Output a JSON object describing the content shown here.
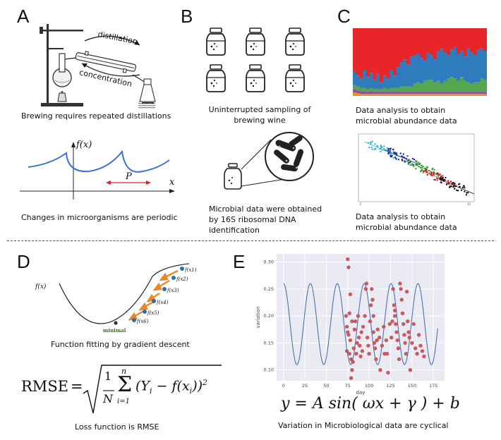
{
  "panels": {
    "a": {
      "label": "A",
      "distillation": "distillation",
      "concentration": "concentration",
      "caption": "Brewing requires repeated distillations",
      "wave_ylabel": "f(x)",
      "wave_xlabel": "x",
      "period_label": "P",
      "wave_caption": "Changes in microorganisms are periodic"
    },
    "b": {
      "label": "B",
      "caption_line1": "Uninterrupted sampling of",
      "caption_line2": "brewing wine",
      "micro_line1": "Microbial  data were obtained",
      "micro_line2": "by 16S ribosomal DNA",
      "micro_line3": "identification"
    },
    "c": {
      "label": "C",
      "caption1_line1": "Data analysis to obtain",
      "caption1_line2": "microbial abundance data",
      "caption2_line1": "Data analysis to obtain",
      "caption2_line2": "microbial abundance data"
    },
    "d": {
      "label": "D",
      "fx_label": "f(x)",
      "minimal_label": "minimal",
      "points": [
        "f(x1)",
        "f(x2)",
        "f(x3)",
        "f(x4)",
        "f(x5)",
        "f(x6)"
      ],
      "caption": "Function fitting by gradient descent",
      "rmse_lhs": "RMSE",
      "rmse_frac_num": "1",
      "rmse_frac_den": "N",
      "rmse_sum_top": "n",
      "rmse_sum_bottom": "i=1",
      "rmse_body": "(Y",
      "rmse_sub_i": "i",
      "rmse_minus": " − f(x",
      "rmse_close": "))",
      "rmse_exp": "2",
      "loss_caption": "Loss function is RMSE"
    },
    "e": {
      "label": "E",
      "formula": "y = A sin( ωx + γ ) + b",
      "caption": "Variation in Microbiological data are cyclical"
    }
  },
  "chart_data": {
    "type": "scatter",
    "xlabel": "day",
    "ylabel": "variation",
    "xlim": [
      -8,
      188
    ],
    "ylim": [
      0.08,
      0.315
    ],
    "xticks": [
      0,
      25,
      50,
      75,
      100,
      125,
      150,
      175
    ],
    "yticks": [
      0.1,
      0.15,
      0.2,
      0.25,
      0.3
    ],
    "grid": true,
    "series": [
      {
        "kind": "line",
        "color": "#4c72b0",
        "model": {
          "A": 0.15,
          "period": 31.4,
          "b": 0.11,
          "x_start": 0,
          "x_end": 180
        }
      },
      {
        "kind": "points",
        "color": "#c44e52",
        "points": [
          [
            73,
            0.2
          ],
          [
            74,
            0.18
          ],
          [
            75,
            0.305
          ],
          [
            76,
            0.29
          ],
          [
            75,
            0.17
          ],
          [
            77,
            0.13
          ],
          [
            74,
            0.135
          ],
          [
            78,
            0.24
          ],
          [
            76,
            0.165
          ],
          [
            79,
            0.12
          ],
          [
            80,
            0.19
          ],
          [
            77,
            0.205
          ],
          [
            78,
            0.155
          ],
          [
            81,
            0.115
          ],
          [
            80,
            0.1
          ],
          [
            79,
            0.085
          ],
          [
            82,
            0.14
          ],
          [
            83,
            0.175
          ],
          [
            84,
            0.19
          ],
          [
            85,
            0.13
          ],
          [
            86,
            0.15
          ],
          [
            87,
            0.2
          ],
          [
            88,
            0.16
          ],
          [
            89,
            0.145
          ],
          [
            90,
            0.125
          ],
          [
            91,
            0.17
          ],
          [
            92,
            0.135
          ],
          [
            93,
            0.18
          ],
          [
            95,
            0.2
          ],
          [
            96,
            0.25
          ],
          [
            97,
            0.26
          ],
          [
            98,
            0.16
          ],
          [
            99,
            0.145
          ],
          [
            100,
            0.13
          ],
          [
            101,
            0.19
          ],
          [
            102,
            0.22
          ],
          [
            103,
            0.25
          ],
          [
            104,
            0.23
          ],
          [
            105,
            0.2
          ],
          [
            105,
            0.17
          ],
          [
            106,
            0.15
          ],
          [
            107,
            0.14
          ],
          [
            108,
            0.12
          ],
          [
            109,
            0.155
          ],
          [
            110,
            0.175
          ],
          [
            112,
            0.16
          ],
          [
            113,
            0.1
          ],
          [
            115,
            0.145
          ],
          [
            117,
            0.18
          ],
          [
            118,
            0.13
          ],
          [
            120,
            0.155
          ],
          [
            121,
            0.13
          ],
          [
            122,
            0.095
          ],
          [
            124,
            0.185
          ],
          [
            126,
            0.16
          ],
          [
            127,
            0.19
          ],
          [
            128,
            0.25
          ],
          [
            129,
            0.22
          ],
          [
            130,
            0.21
          ],
          [
            130,
            0.2
          ],
          [
            131,
            0.185
          ],
          [
            132,
            0.17
          ],
          [
            133,
            0.155
          ],
          [
            134,
            0.14
          ],
          [
            135,
            0.12
          ],
          [
            136,
            0.26
          ],
          [
            137,
            0.25
          ],
          [
            138,
            0.23
          ],
          [
            139,
            0.205
          ],
          [
            140,
            0.185
          ],
          [
            141,
            0.165
          ],
          [
            142,
            0.15
          ],
          [
            143,
            0.13
          ],
          [
            144,
            0.245
          ],
          [
            145,
            0.19
          ],
          [
            146,
            0.17
          ],
          [
            147,
            0.16
          ],
          [
            148,
            0.1
          ],
          [
            150,
            0.15
          ],
          [
            152,
            0.185
          ],
          [
            154,
            0.14
          ],
          [
            156,
            0.13
          ],
          [
            158,
            0.165
          ],
          [
            160,
            0.145
          ],
          [
            162,
            0.135
          ],
          [
            164,
            0.125
          ]
        ]
      }
    ]
  },
  "bars": {
    "colors": [
      "#e8262a",
      "#2e7bbd",
      "#55a74d",
      "#8b4fa0",
      "#f08a24"
    ],
    "columns": [
      [
        0.64,
        0.2,
        0.06,
        0.05,
        0.05
      ],
      [
        0.7,
        0.16,
        0.06,
        0.04,
        0.04
      ],
      [
        0.74,
        0.14,
        0.05,
        0.04,
        0.03
      ],
      [
        0.62,
        0.26,
        0.05,
        0.04,
        0.03
      ],
      [
        0.72,
        0.18,
        0.04,
        0.03,
        0.03
      ],
      [
        0.66,
        0.22,
        0.05,
        0.04,
        0.03
      ],
      [
        0.76,
        0.14,
        0.04,
        0.03,
        0.03
      ],
      [
        0.68,
        0.22,
        0.04,
        0.03,
        0.03
      ],
      [
        0.8,
        0.1,
        0.04,
        0.03,
        0.03
      ],
      [
        0.7,
        0.18,
        0.06,
        0.03,
        0.03
      ],
      [
        0.74,
        0.16,
        0.04,
        0.03,
        0.03
      ],
      [
        0.62,
        0.26,
        0.06,
        0.03,
        0.03
      ],
      [
        0.7,
        0.18,
        0.06,
        0.03,
        0.03
      ],
      [
        0.58,
        0.3,
        0.06,
        0.03,
        0.03
      ],
      [
        0.5,
        0.36,
        0.08,
        0.03,
        0.03
      ],
      [
        0.46,
        0.4,
        0.08,
        0.03,
        0.03
      ],
      [
        0.54,
        0.32,
        0.08,
        0.03,
        0.03
      ],
      [
        0.42,
        0.44,
        0.08,
        0.03,
        0.03
      ],
      [
        0.4,
        0.42,
        0.12,
        0.03,
        0.03
      ],
      [
        0.38,
        0.42,
        0.14,
        0.03,
        0.03
      ],
      [
        0.44,
        0.38,
        0.12,
        0.03,
        0.03
      ],
      [
        0.48,
        0.3,
        0.16,
        0.03,
        0.03
      ],
      [
        0.36,
        0.4,
        0.18,
        0.03,
        0.03
      ],
      [
        0.4,
        0.36,
        0.18,
        0.03,
        0.03
      ],
      [
        0.46,
        0.34,
        0.14,
        0.03,
        0.03
      ],
      [
        0.34,
        0.44,
        0.16,
        0.03,
        0.03
      ],
      [
        0.3,
        0.52,
        0.12,
        0.03,
        0.03
      ],
      [
        0.36,
        0.42,
        0.16,
        0.03,
        0.03
      ],
      [
        0.4,
        0.34,
        0.2,
        0.03,
        0.03
      ],
      [
        0.32,
        0.4,
        0.22,
        0.03,
        0.03
      ],
      [
        0.28,
        0.46,
        0.2,
        0.03,
        0.03
      ],
      [
        0.38,
        0.4,
        0.16,
        0.03,
        0.03
      ],
      [
        0.34,
        0.38,
        0.22,
        0.03,
        0.03
      ],
      [
        0.42,
        0.36,
        0.16,
        0.03,
        0.03
      ],
      [
        0.3,
        0.5,
        0.14,
        0.03,
        0.03
      ],
      [
        0.36,
        0.46,
        0.12,
        0.03,
        0.03
      ],
      [
        0.4,
        0.4,
        0.14,
        0.03,
        0.03
      ],
      [
        0.32,
        0.48,
        0.14,
        0.03,
        0.03
      ],
      [
        0.3,
        0.44,
        0.2,
        0.03,
        0.03
      ],
      [
        0.34,
        0.42,
        0.18,
        0.03,
        0.03
      ]
    ]
  },
  "clusters": {
    "colors": [
      "#3fb6c7",
      "#1f2a9e",
      "#2ca02c",
      "#c62828",
      "#111111"
    ]
  }
}
